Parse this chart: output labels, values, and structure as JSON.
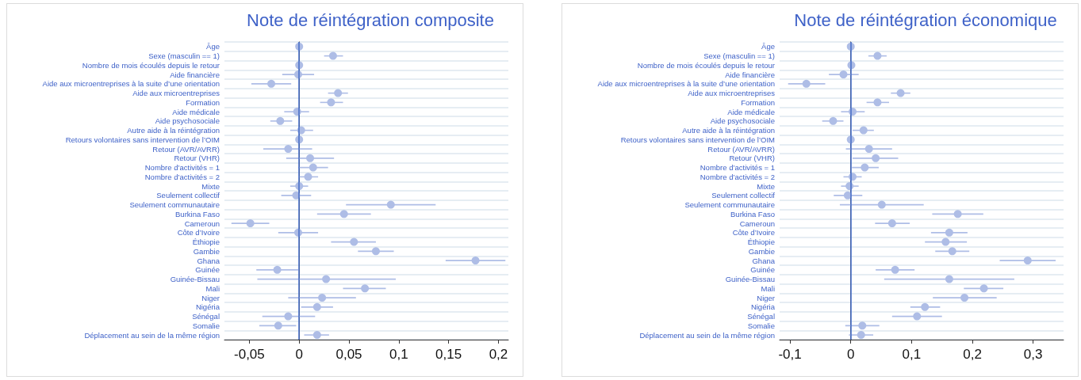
{
  "chart_data": [
    {
      "type": "scatter",
      "title": "Note de réintégration composite",
      "orientation": "horizontal",
      "marker": "circle",
      "grid": "y",
      "categories": [
        "Âge",
        "Sexe (masculin == 1)",
        "Nombre de mois écoulés depuis le retour",
        "Aide financière",
        "Aide aux microentreprises à la suite d’une orientation",
        "Aide aux microentreprises",
        "Formation",
        "Aide médicale",
        "Aide psychosociale",
        "Autre aide à la réintégration",
        "Retours volontaires sans intervention de l’OIM",
        "Retour (AVR/AVRR)",
        "Retour (VHR)",
        "Nombre d’activités = 1",
        "Nombre d’activités = 2",
        "Mixte",
        "Seulement collectif",
        "Seulement communautaire",
        "Burkina Faso",
        "Cameroun",
        "Côte d’Ivoire",
        "Éthiopie",
        "Gambie",
        "Ghana",
        "Guinée",
        "Guinée-Bissau",
        "Mali",
        "Niger",
        "Nigéria",
        "Sénégal",
        "Somalie",
        "Déplacement au sein de la même région"
      ],
      "series": [
        {
          "color": "#aebde6",
          "values": [
            0,
            0.034,
            0,
            -0.001,
            -0.028,
            0.039,
            0.032,
            -0.002,
            -0.019,
            0.002,
            0,
            -0.011,
            0.011,
            0.014,
            0.009,
            0,
            -0.003,
            0.092,
            0.045,
            -0.049,
            -0.001,
            0.055,
            0.077,
            0.177,
            -0.022,
            0.027,
            0.066,
            0.023,
            0.018,
            -0.011,
            -0.021,
            0.018
          ],
          "errors": [
            null,
            [
              0.025,
              0.044
            ],
            null,
            [
              -0.017,
              0.015
            ],
            [
              -0.048,
              -0.008
            ],
            [
              0.029,
              0.049
            ],
            [
              0.021,
              0.044
            ],
            [
              -0.015,
              0.01
            ],
            [
              -0.029,
              -0.007
            ],
            [
              -0.009,
              0.014
            ],
            null,
            [
              -0.036,
              0.013
            ],
            [
              -0.013,
              0.035
            ],
            [
              -0.001,
              0.029
            ],
            [
              0,
              0.019
            ],
            [
              -0.009,
              0.009
            ],
            [
              -0.018,
              0.012
            ],
            [
              0.047,
              0.137
            ],
            [
              0.018,
              0.072
            ],
            [
              -0.068,
              -0.03
            ],
            [
              -0.021,
              0.019
            ],
            [
              0.032,
              0.077
            ],
            [
              0.059,
              0.095
            ],
            [
              0.147,
              0.207
            ],
            [
              -0.043,
              -0.001
            ],
            [
              -0.042,
              0.097
            ],
            [
              0.044,
              0.087
            ],
            [
              -0.011,
              0.057
            ],
            [
              0.002,
              0.034
            ],
            [
              -0.037,
              0.016
            ],
            [
              -0.04,
              -0.003
            ],
            [
              0.005,
              0.03
            ]
          ]
        }
      ],
      "xlim": [
        -0.075,
        0.21
      ],
      "xticks": [
        {
          "value": -0.05,
          "label": "-0,05"
        },
        0,
        {
          "value": 0.05,
          "label": "0,05"
        },
        {
          "value": 0.1,
          "label": "0,1"
        },
        {
          "value": 0.15,
          "label": "0,15"
        },
        {
          "value": 0.2,
          "label": "0,2"
        }
      ],
      "ref_lines": [
        {
          "axis": "x",
          "value": 0,
          "color": "#4a70c8"
        }
      ]
    },
    {
      "type": "scatter",
      "title": "Note de réintégration économique",
      "orientation": "horizontal",
      "marker": "circle",
      "grid": "y",
      "categories": [
        "Âge",
        "Sexe (masculin == 1)",
        "Nombre de mois écoulés depuis le retour",
        "Aide financière",
        "Aide aux microentreprises à la suite d’une orientation",
        "Aide aux microentreprises",
        "Formation",
        "Aide médicale",
        "Aide psychosociale",
        "Autre aide à la réintégration",
        "Retours volontaires sans intervention de l’OIM",
        "Retour (AVR/AVRR)",
        "Retour (VHR)",
        "Nombre d’activités = 1",
        "Nombre d’activités = 2",
        "Mixte",
        "Seulement collectif",
        "Seulement communautaire",
        "Burkina Faso",
        "Cameroun",
        "Côte d’Ivoire",
        "Éthiopie",
        "Gambie",
        "Ghana",
        "Guinée",
        "Guinée-Bissau",
        "Mali",
        "Niger",
        "Nigéria",
        "Sénégal",
        "Somalie",
        "Déplacement au sein de la même région"
      ],
      "series": [
        {
          "color": "#aebde6",
          "values": [
            0,
            0.044,
            0.001,
            -0.012,
            -0.073,
            0.082,
            0.044,
            0.003,
            -0.029,
            0.021,
            0,
            0.03,
            0.041,
            0.023,
            0.003,
            -0.002,
            -0.005,
            0.051,
            0.176,
            0.068,
            0.162,
            0.156,
            0.167,
            0.291,
            0.073,
            0.162,
            0.219,
            0.187,
            0.122,
            0.109,
            0.019,
            0.017
          ],
          "errors": [
            null,
            [
              0.029,
              0.059
            ],
            null,
            [
              -0.036,
              0.013
            ],
            [
              -0.103,
              -0.042
            ],
            [
              0.066,
              0.098
            ],
            [
              0.026,
              0.063
            ],
            [
              -0.016,
              0.023
            ],
            [
              -0.047,
              -0.012
            ],
            [
              0.003,
              0.038
            ],
            null,
            [
              -0.008,
              0.068
            ],
            [
              0.003,
              0.078
            ],
            [
              0.002,
              0.046
            ],
            [
              -0.012,
              0.018
            ],
            [
              -0.016,
              0.013
            ],
            [
              -0.028,
              0.019
            ],
            [
              -0.018,
              0.12
            ],
            [
              0.134,
              0.218
            ],
            [
              0.04,
              0.097
            ],
            [
              0.132,
              0.192
            ],
            [
              0.122,
              0.191
            ],
            [
              0.139,
              0.195
            ],
            [
              0.245,
              0.337
            ],
            [
              0.041,
              0.105
            ],
            [
              0.055,
              0.269
            ],
            [
              0.186,
              0.251
            ],
            [
              0.135,
              0.24
            ],
            [
              0.098,
              0.147
            ],
            [
              0.068,
              0.15
            ],
            [
              -0.009,
              0.047
            ],
            [
              -0.003,
              0.037
            ]
          ]
        }
      ],
      "xlim": [
        -0.117,
        0.35
      ],
      "xticks": [
        {
          "value": -0.1,
          "label": "-0,1"
        },
        0,
        {
          "value": 0.1,
          "label": "0,1"
        },
        {
          "value": 0.2,
          "label": "0,2"
        },
        {
          "value": 0.3,
          "label": "0,3"
        }
      ],
      "ref_lines": [
        {
          "axis": "x",
          "value": 0,
          "color": "#4a70c8"
        }
      ]
    }
  ]
}
